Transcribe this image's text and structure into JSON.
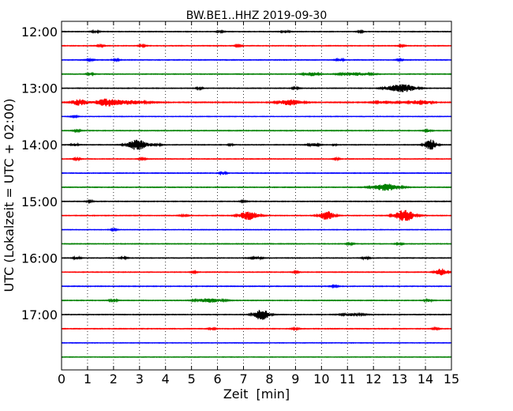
{
  "chart_data": {
    "type": "line",
    "title": "BW.BE1..HHZ 2019-09-30",
    "xlabel": "Zeit  [min]",
    "ylabel": "UTC (Lokalzeit = UTC + 02:00)",
    "xlim": [
      0,
      15
    ],
    "x_ticks": [
      "0",
      "1",
      "2",
      "3",
      "4",
      "5",
      "6",
      "7",
      "8",
      "9",
      "10",
      "11",
      "12",
      "13",
      "14",
      "15"
    ],
    "grid": {
      "vertical": "dotted",
      "horizontal": false
    },
    "row_interval_minutes": 15,
    "y_ticks": [
      {
        "label": "12:00",
        "row": 0
      },
      {
        "label": "13:00",
        "row": 4
      },
      {
        "label": "14:00",
        "row": 8
      },
      {
        "label": "15:00",
        "row": 12
      },
      {
        "label": "16:00",
        "row": 16
      },
      {
        "label": "17:00",
        "row": 20
      }
    ],
    "color_cycle": [
      "#000000",
      "#ff0000",
      "#0000ff",
      "#008000"
    ],
    "traces": [
      {
        "noise": 0.35,
        "events": [
          {
            "t": 1.3,
            "a": 1.2,
            "d": 0.1
          },
          {
            "t": 6.1,
            "a": 1.0,
            "d": 0.1
          },
          {
            "t": 8.6,
            "a": 1.6,
            "d": 0.1
          },
          {
            "t": 11.5,
            "a": 0.8,
            "d": 0.1
          }
        ]
      },
      {
        "noise": 0.35,
        "events": [
          {
            "t": 1.5,
            "a": 1.0,
            "d": 0.1
          },
          {
            "t": 3.1,
            "a": 1.0,
            "d": 0.1
          },
          {
            "t": 6.8,
            "a": 0.8,
            "d": 0.1
          },
          {
            "t": 13.1,
            "a": 0.8,
            "d": 0.1
          }
        ]
      },
      {
        "noise": 0.35,
        "events": [
          {
            "t": 1.1,
            "a": 1.2,
            "d": 0.1
          },
          {
            "t": 2.1,
            "a": 0.9,
            "d": 0.1
          },
          {
            "t": 10.7,
            "a": 1.4,
            "d": 0.1
          },
          {
            "t": 13.0,
            "a": 0.8,
            "d": 0.1
          }
        ]
      },
      {
        "noise": 0.35,
        "events": [
          {
            "t": 1.1,
            "a": 1.3,
            "d": 0.1
          },
          {
            "t": 9.6,
            "a": 2.5,
            "d": 0.18
          },
          {
            "t": 11.3,
            "a": 2.0,
            "d": 0.4
          }
        ]
      },
      {
        "noise": 0.35,
        "events": [
          {
            "t": 5.3,
            "a": 1.0,
            "d": 0.1
          },
          {
            "t": 9.0,
            "a": 1.0,
            "d": 0.1
          },
          {
            "t": 13.2,
            "a": 4.5,
            "d": 0.3
          },
          {
            "t": 12.7,
            "a": 2.0,
            "d": 0.25
          }
        ]
      },
      {
        "noise": 0.45,
        "events": [
          {
            "t": 0.7,
            "a": 4.0,
            "d": 0.2
          },
          {
            "t": 1.7,
            "a": 4.5,
            "d": 0.3
          },
          {
            "t": 2.6,
            "a": 2.5,
            "d": 0.45
          },
          {
            "t": 8.8,
            "a": 3.5,
            "d": 0.3
          },
          {
            "t": 13.8,
            "a": 3.0,
            "d": 0.25
          },
          {
            "t": 12.5,
            "a": 1.5,
            "d": 0.3
          }
        ]
      },
      {
        "noise": 0.3,
        "events": [
          {
            "t": 0.5,
            "a": 0.8,
            "d": 0.1
          }
        ]
      },
      {
        "noise": 0.35,
        "events": [
          {
            "t": 0.6,
            "a": 1.0,
            "d": 0.1
          },
          {
            "t": 14.1,
            "a": 1.2,
            "d": 0.1
          }
        ]
      },
      {
        "noise": 0.35,
        "events": [
          {
            "t": 0.5,
            "a": 1.5,
            "d": 0.1
          },
          {
            "t": 2.9,
            "a": 7.0,
            "d": 0.25
          },
          {
            "t": 3.6,
            "a": 1.5,
            "d": 0.15
          },
          {
            "t": 6.5,
            "a": 2.5,
            "d": 0.05
          },
          {
            "t": 9.7,
            "a": 1.8,
            "d": 0.15
          },
          {
            "t": 10.5,
            "a": 1.5,
            "d": 0.05
          },
          {
            "t": 14.2,
            "a": 7.0,
            "d": 0.15
          }
        ]
      },
      {
        "noise": 0.35,
        "events": [
          {
            "t": 0.6,
            "a": 1.0,
            "d": 0.1
          },
          {
            "t": 3.1,
            "a": 1.0,
            "d": 0.1
          },
          {
            "t": 10.6,
            "a": 0.8,
            "d": 0.1
          }
        ]
      },
      {
        "noise": 0.35,
        "events": [
          {
            "t": 6.2,
            "a": 1.5,
            "d": 0.1
          }
        ]
      },
      {
        "noise": 0.35,
        "events": [
          {
            "t": 12.5,
            "a": 4.5,
            "d": 0.35
          }
        ]
      },
      {
        "noise": 0.35,
        "events": [
          {
            "t": 1.1,
            "a": 1.0,
            "d": 0.1
          },
          {
            "t": 7.0,
            "a": 0.8,
            "d": 0.1
          }
        ]
      },
      {
        "noise": 0.35,
        "events": [
          {
            "t": 4.7,
            "a": 1.2,
            "d": 0.1
          },
          {
            "t": 7.2,
            "a": 5.5,
            "d": 0.25
          },
          {
            "t": 10.2,
            "a": 5.5,
            "d": 0.2
          },
          {
            "t": 13.2,
            "a": 7.5,
            "d": 0.25
          }
        ]
      },
      {
        "noise": 0.3,
        "events": [
          {
            "t": 2.0,
            "a": 0.8,
            "d": 0.1
          }
        ]
      },
      {
        "noise": 0.35,
        "events": [
          {
            "t": 11.1,
            "a": 1.0,
            "d": 0.1
          },
          {
            "t": 13.0,
            "a": 1.0,
            "d": 0.1
          }
        ]
      },
      {
        "noise": 0.35,
        "events": [
          {
            "t": 0.6,
            "a": 1.5,
            "d": 0.1
          },
          {
            "t": 2.4,
            "a": 1.0,
            "d": 0.1
          },
          {
            "t": 7.5,
            "a": 1.5,
            "d": 0.15
          },
          {
            "t": 11.7,
            "a": 1.3,
            "d": 0.1
          }
        ]
      },
      {
        "noise": 0.35,
        "events": [
          {
            "t": 5.1,
            "a": 0.8,
            "d": 0.1
          },
          {
            "t": 9.0,
            "a": 0.8,
            "d": 0.1
          },
          {
            "t": 14.6,
            "a": 4.5,
            "d": 0.15
          }
        ]
      },
      {
        "noise": 0.35,
        "events": [
          {
            "t": 10.5,
            "a": 0.8,
            "d": 0.1
          }
        ]
      },
      {
        "noise": 0.35,
        "events": [
          {
            "t": 2.0,
            "a": 2.0,
            "d": 0.1
          },
          {
            "t": 5.7,
            "a": 2.5,
            "d": 0.35
          },
          {
            "t": 14.1,
            "a": 1.5,
            "d": 0.1
          }
        ]
      },
      {
        "noise": 0.35,
        "events": [
          {
            "t": 7.7,
            "a": 7.0,
            "d": 0.2
          },
          {
            "t": 11.2,
            "a": 1.5,
            "d": 0.3
          }
        ]
      },
      {
        "noise": 0.35,
        "events": [
          {
            "t": 5.8,
            "a": 1.0,
            "d": 0.1
          },
          {
            "t": 9.0,
            "a": 1.0,
            "d": 0.1
          },
          {
            "t": 14.4,
            "a": 1.0,
            "d": 0.1
          }
        ]
      },
      {
        "noise": 0.3,
        "events": []
      },
      {
        "noise": 0.3,
        "events": []
      }
    ]
  }
}
